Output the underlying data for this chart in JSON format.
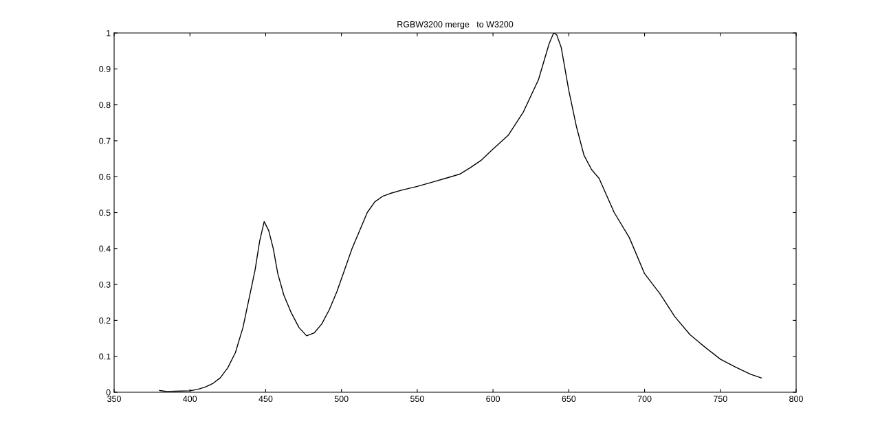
{
  "chart_data": {
    "type": "line",
    "title": "RGBW3200 merge   to W3200",
    "x": [
      380,
      385,
      390,
      400,
      405,
      410,
      415,
      420,
      425,
      430,
      435,
      440,
      443,
      446,
      449,
      452,
      455,
      458,
      462,
      467,
      472,
      477,
      482,
      487,
      492,
      497,
      502,
      507,
      512,
      517,
      522,
      527,
      532,
      540,
      550,
      560,
      570,
      578,
      585,
      592,
      600,
      610,
      620,
      630,
      637,
      640,
      642,
      645,
      650,
      655,
      660,
      665,
      670,
      680,
      690,
      700,
      710,
      720,
      730,
      740,
      750,
      760,
      770,
      777
    ],
    "series": [
      {
        "color": "#000000",
        "values": [
          0.005,
          0.002,
          0.003,
          0.004,
          0.008,
          0.014,
          0.024,
          0.04,
          0.068,
          0.11,
          0.18,
          0.28,
          0.34,
          0.42,
          0.475,
          0.45,
          0.4,
          0.33,
          0.27,
          0.22,
          0.18,
          0.157,
          0.165,
          0.19,
          0.23,
          0.28,
          0.34,
          0.4,
          0.45,
          0.5,
          0.53,
          0.545,
          0.553,
          0.563,
          0.573,
          0.585,
          0.597,
          0.607,
          0.625,
          0.645,
          0.677,
          0.715,
          0.78,
          0.87,
          0.97,
          1.0,
          0.995,
          0.96,
          0.84,
          0.74,
          0.66,
          0.62,
          0.595,
          0.5,
          0.43,
          0.33,
          0.275,
          0.21,
          0.16,
          0.125,
          0.092,
          0.07,
          0.05,
          0.04
        ]
      }
    ],
    "xlim": [
      350,
      800
    ],
    "ylim": [
      0,
      1
    ],
    "xticks": [
      350,
      400,
      450,
      500,
      550,
      600,
      650,
      700,
      750,
      800
    ],
    "yticks": [
      0,
      0.1,
      0.2,
      0.3,
      0.4,
      0.5,
      0.6,
      0.7,
      0.8,
      0.9,
      1
    ],
    "grid": false,
    "legend": false
  }
}
